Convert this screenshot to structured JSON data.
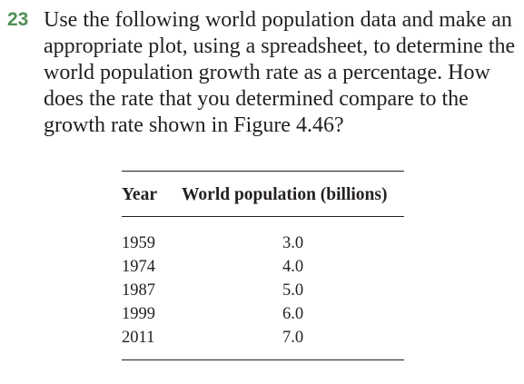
{
  "problem": {
    "number": "23",
    "text": "Use the following world population data and make an appropriate plot, using a spreadsheet, to determine the world population growth rate as a percentage. How does the rate that you determined compare to the growth rate shown in Figure 4.46?"
  },
  "table": {
    "headers": {
      "year": "Year",
      "population": "World population (billions)"
    },
    "rows": [
      {
        "year": "1959",
        "population": "3.0"
      },
      {
        "year": "1974",
        "population": "4.0"
      },
      {
        "year": "1987",
        "population": "5.0"
      },
      {
        "year": "1999",
        "population": "6.0"
      },
      {
        "year": "2011",
        "population": "7.0"
      }
    ]
  },
  "colors": {
    "problem_number": "#4f8f56",
    "text": "#231f20"
  }
}
